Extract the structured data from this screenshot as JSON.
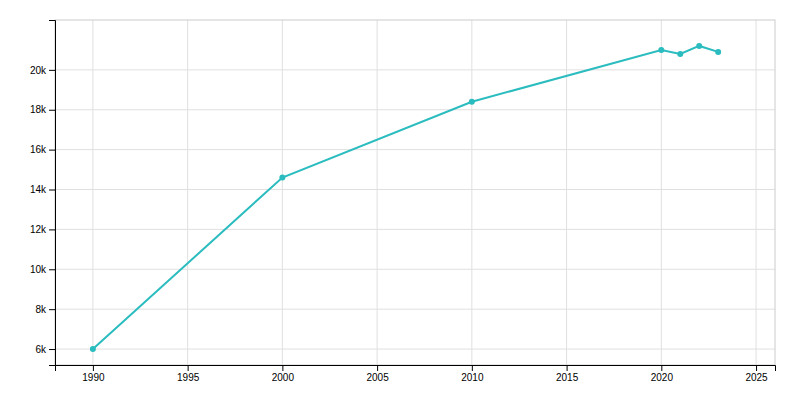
{
  "chart_data": {
    "type": "line",
    "x": [
      1990,
      2000,
      2010,
      2020,
      2021,
      2022,
      2023
    ],
    "values": [
      6000,
      14600,
      18400,
      21000,
      20800,
      21200,
      20900
    ],
    "color": "#2bbcbf",
    "marker": "circle",
    "xlim": [
      1988,
      2026
    ],
    "ylim": [
      5200,
      22500
    ],
    "xticks": [
      1990,
      1995,
      2000,
      2005,
      2010,
      2015,
      2020,
      2025
    ],
    "yticks": [
      {
        "value": 6000,
        "label": "6k"
      },
      {
        "value": 8000,
        "label": "8k"
      },
      {
        "value": 10000,
        "label": "10k"
      },
      {
        "value": 12000,
        "label": "12k"
      },
      {
        "value": 14000,
        "label": "14k"
      },
      {
        "value": 16000,
        "label": "16k"
      },
      {
        "value": 18000,
        "label": "18k"
      },
      {
        "value": 20000,
        "label": "20k"
      }
    ],
    "grid": true
  }
}
